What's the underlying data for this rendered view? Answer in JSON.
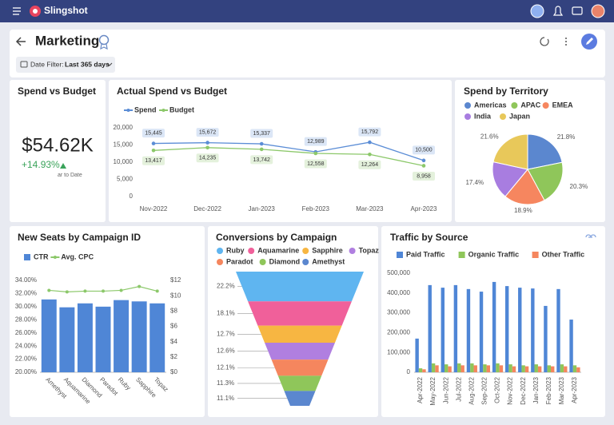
{
  "app": {
    "name": "Slingshot"
  },
  "header": {
    "title": "Marketing",
    "filter_label": "Date Filter:",
    "filter_value": "Last 365 days"
  },
  "kpi": {
    "title": "Spend vs Budget",
    "value": "$54.62K",
    "change": "+14.93%",
    "note": "ar to Date"
  },
  "chart_data": [
    {
      "type": "line",
      "title": "Actual Spend vs Budget",
      "categories": [
        "Nov-2022",
        "Dec-2022",
        "Jan-2023",
        "Feb-2023",
        "Mar-2023",
        "Apr-2023"
      ],
      "series": [
        {
          "name": "Spend",
          "color": "#5b8dd6",
          "values": [
            15445,
            15672,
            15337,
            12989,
            15792,
            10500
          ],
          "value_labels": [
            "15,445",
            "15,672",
            "15,337",
            "12,989",
            "15,792",
            "10,500"
          ]
        },
        {
          "name": "Budget",
          "color": "#8cc86a",
          "values": [
            13417,
            14235,
            13742,
            12558,
            12264,
            8958
          ],
          "value_labels": [
            "13,417",
            "14,235",
            "13,742",
            "12,558",
            "12,264",
            "8,958"
          ]
        }
      ],
      "ylim": [
        0,
        20000
      ],
      "yticks": [
        0,
        {
          "value": 5000,
          "label": "5,000"
        },
        {
          "value": 10000,
          "label": "10,000"
        },
        {
          "value": 15000,
          "label": "15,000"
        },
        {
          "value": 20000,
          "label": "20,000"
        }
      ]
    },
    {
      "type": "pie",
      "title": "Spend by Territory",
      "categories": [
        "Americas",
        "APAC",
        "EMEA",
        "India",
        "Japan"
      ],
      "values": [
        21.8,
        20.3,
        18.9,
        17.4,
        21.6
      ],
      "value_labels": [
        "21.8%",
        "20.3%",
        "18.9%",
        "17.4%",
        "21.6%"
      ],
      "colors": [
        "#5b87cf",
        "#8fc65a",
        "#f6865f",
        "#a87de0",
        "#e8c85a"
      ]
    },
    {
      "type": "combo",
      "title": "New Seats by Campaign ID",
      "categories": [
        "Amethyst",
        "Aquamarine",
        "Diamond",
        "Paradot",
        "Ruby",
        "Sapphire",
        "Topaz"
      ],
      "series": [
        {
          "name": "CTR",
          "color": "#4f86d6",
          "values": [
            31.1,
            29.9,
            30.5,
            30.0,
            31.0,
            30.8,
            30.5
          ]
        },
        {
          "name": "Avg. CPC",
          "color": "#8cc86a",
          "axis": "y2",
          "values": [
            10.7,
            10.5,
            10.6,
            10.6,
            10.7,
            11.2,
            10.6
          ]
        }
      ],
      "ylim": [
        20,
        34
      ],
      "yticks": [
        {
          "value": 20,
          "label": "20.00%"
        },
        {
          "value": 22,
          "label": "22.00%"
        },
        {
          "value": 24,
          "label": "24.00%"
        },
        {
          "value": 26,
          "label": "26.00%"
        },
        {
          "value": 28,
          "label": "28.00%"
        },
        {
          "value": 30,
          "label": "30.00%"
        },
        {
          "value": 32,
          "label": "32.00%"
        },
        {
          "value": 34,
          "label": "34.00%"
        }
      ],
      "y2lim": [
        0,
        12
      ],
      "y2ticks": [
        {
          "value": 0,
          "label": "$0"
        },
        {
          "value": 2,
          "label": "$2"
        },
        {
          "value": 4,
          "label": "$4"
        },
        {
          "value": 6,
          "label": "$6"
        },
        {
          "value": 8,
          "label": "$8"
        },
        {
          "value": 10,
          "label": "$10"
        },
        {
          "value": 12,
          "label": "$12"
        }
      ]
    },
    {
      "type": "funnel",
      "title": "Conversions by Campaign",
      "categories": [
        "Ruby",
        "Aquamarine",
        "Sapphire",
        "Topaz",
        "Paradot",
        "Diamond",
        "Amethyst"
      ],
      "values": [
        22.2,
        18.1,
        12.7,
        12.6,
        12.1,
        11.3,
        11.1
      ],
      "value_labels": [
        "22.2%",
        "18.1%",
        "12.7%",
        "12.6%",
        "12.1%",
        "11.3%",
        "11.1%"
      ],
      "colors": [
        "#5fb5f0",
        "#f0609a",
        "#f7b642",
        "#b07fe0",
        "#f5865e",
        "#8fc65a",
        "#5b87cf"
      ]
    },
    {
      "type": "bar",
      "title": "Traffic by Source",
      "categories": [
        "Apr-2022",
        "May-2022",
        "Jun-2022",
        "Jul-2022",
        "Aug-2022",
        "Sep-2022",
        "Oct-2022",
        "Nov-2022",
        "Dec-2022",
        "Jan-2023",
        "Feb-2023",
        "Mar-2023",
        "Apr-2023"
      ],
      "series": [
        {
          "name": "Paid Traffic",
          "color": "#4f86d6",
          "values": [
            170000,
            440000,
            427000,
            440000,
            420000,
            407000,
            456000,
            435000,
            427000,
            423000,
            335000,
            420000,
            266000
          ]
        },
        {
          "name": "Organic Traffic",
          "color": "#8fc65a",
          "values": [
            20000,
            45000,
            40000,
            45000,
            45000,
            40000,
            45000,
            40000,
            35000,
            40000,
            35000,
            40000,
            35000
          ]
        },
        {
          "name": "Other Traffic",
          "color": "#f5865e",
          "values": [
            15000,
            35000,
            30000,
            35000,
            35000,
            35000,
            35000,
            30000,
            30000,
            30000,
            30000,
            30000,
            25000
          ]
        }
      ],
      "ylim": [
        0,
        500000
      ],
      "yticks": [
        0,
        {
          "value": 100000,
          "label": "100,000"
        },
        {
          "value": 200000,
          "label": "200,000"
        },
        {
          "value": 300000,
          "label": "300,000"
        },
        {
          "value": 400000,
          "label": "400,000"
        },
        {
          "value": 500000,
          "label": "500,000"
        }
      ]
    }
  ]
}
